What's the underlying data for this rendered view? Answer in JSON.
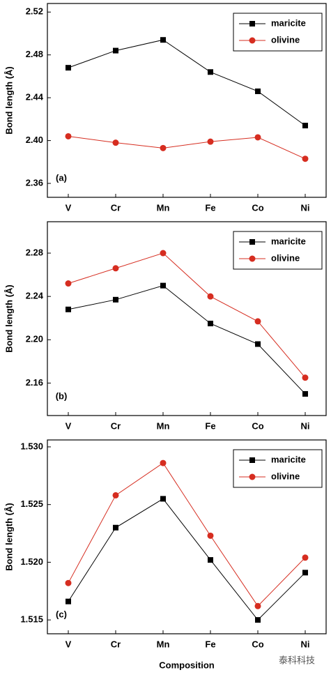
{
  "chart_data": [
    {
      "type": "line",
      "annotation": "(a)",
      "y_label": "Bond length (Å)",
      "categories": [
        "V",
        "Cr",
        "Mn",
        "Fe",
        "Co",
        "Ni"
      ],
      "series": [
        {
          "name": "maricite",
          "color": "#000000",
          "marker": "square",
          "values": [
            2.468,
            2.484,
            2.494,
            2.464,
            2.446,
            2.414
          ]
        },
        {
          "name": "olivine",
          "color": "#d62d20",
          "marker": "circle",
          "values": [
            2.404,
            2.398,
            2.393,
            2.399,
            2.403,
            2.383
          ]
        }
      ],
      "ylim": [
        2.347,
        2.528
      ],
      "yticks": [
        2.36,
        {
          "value": 2.4,
          "label": "2.40"
        },
        2.44,
        2.48,
        2.52
      ],
      "legend": "upper right"
    },
    {
      "type": "line",
      "annotation": "(b)",
      "y_label": "Bond length (Å)",
      "categories": [
        "V",
        "Cr",
        "Mn",
        "Fe",
        "Co",
        "Ni"
      ],
      "series": [
        {
          "name": "maricite",
          "color": "#000000",
          "marker": "square",
          "values": [
            2.228,
            2.237,
            2.25,
            2.215,
            2.196,
            2.15
          ]
        },
        {
          "name": "olivine",
          "color": "#d62d20",
          "marker": "circle",
          "values": [
            2.252,
            2.266,
            2.28,
            2.24,
            2.217,
            2.165
          ]
        }
      ],
      "ylim": [
        2.13,
        2.309
      ],
      "yticks": [
        2.16,
        {
          "value": 2.2,
          "label": "2.20"
        },
        2.24,
        2.28
      ],
      "legend": "upper right"
    },
    {
      "type": "line",
      "annotation": "(c)",
      "y_label": "Bond length (Å)",
      "x_label": "Composition",
      "categories": [
        "V",
        "Cr",
        "Mn",
        "Fe",
        "Co",
        "Ni"
      ],
      "series": [
        {
          "name": "maricite",
          "color": "#000000",
          "marker": "square",
          "values": [
            1.5166,
            1.523,
            1.5255,
            1.5202,
            1.515,
            1.5191
          ]
        },
        {
          "name": "olivine",
          "color": "#d62d20",
          "marker": "circle",
          "values": [
            1.5182,
            1.5258,
            1.5286,
            1.5223,
            1.5162,
            1.5204
          ]
        }
      ],
      "ylim": [
        1.5138,
        1.5306
      ],
      "yticks": [
        1.515,
        {
          "value": 1.52,
          "label": "1.520"
        },
        1.525,
        {
          "value": 1.53,
          "label": "1.530"
        }
      ],
      "legend": "upper right"
    }
  ],
  "watermark": "泰科科技"
}
